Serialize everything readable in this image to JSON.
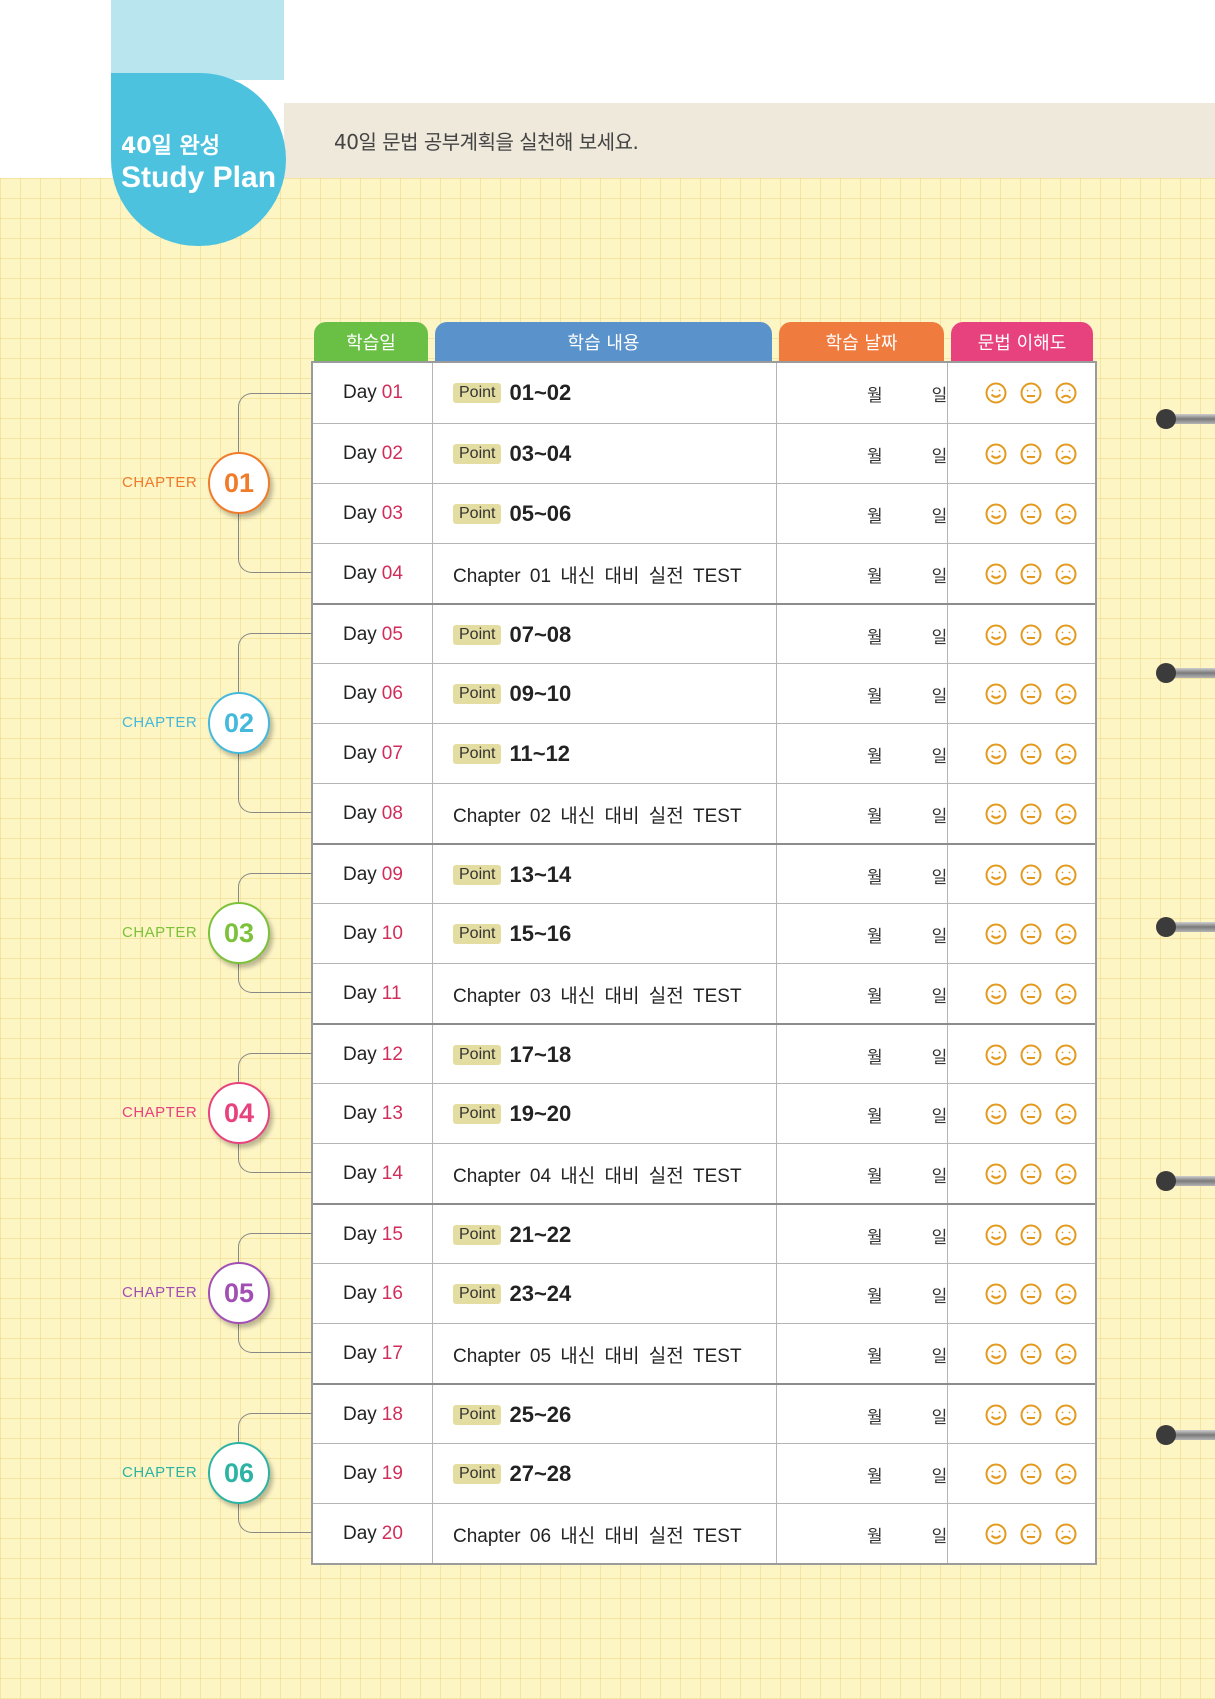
{
  "header": {
    "badge_line1": "40일 완성",
    "badge_line2": "Study Plan",
    "banner_text": "40일 문법 공부계획을 실천해 보세요."
  },
  "columns": [
    {
      "label": "학습일",
      "color": "#6abf45"
    },
    {
      "label": "학습 내용",
      "color": "#5a92cc"
    },
    {
      "label": "학습 날짜",
      "color": "#f07b3f"
    },
    {
      "label": "문법 이해도",
      "color": "#e7427e"
    }
  ],
  "date_labels": {
    "month": "월",
    "day": "일"
  },
  "chapter_word": "CHAPTER",
  "chapters": [
    {
      "number": "01",
      "color": "#f07b2a"
    },
    {
      "number": "02",
      "color": "#45b9dc"
    },
    {
      "number": "03",
      "color": "#7cc13a"
    },
    {
      "number": "04",
      "color": "#e7427e"
    },
    {
      "number": "05",
      "color": "#a24fb4"
    },
    {
      "number": "06",
      "color": "#2db3a3"
    }
  ],
  "rows": [
    {
      "day_prefix": "Day",
      "day": "01",
      "type": "point",
      "badge": "Point",
      "range": "01~02"
    },
    {
      "day_prefix": "Day",
      "day": "02",
      "type": "point",
      "badge": "Point",
      "range": "03~04"
    },
    {
      "day_prefix": "Day",
      "day": "03",
      "type": "point",
      "badge": "Point",
      "range": "05~06"
    },
    {
      "day_prefix": "Day",
      "day": "04",
      "type": "test",
      "text": "Chapter 01  내신 대비 실전 TEST"
    },
    {
      "day_prefix": "Day",
      "day": "05",
      "type": "point",
      "badge": "Point",
      "range": "07~08"
    },
    {
      "day_prefix": "Day",
      "day": "06",
      "type": "point",
      "badge": "Point",
      "range": "09~10"
    },
    {
      "day_prefix": "Day",
      "day": "07",
      "type": "point",
      "badge": "Point",
      "range": "11~12"
    },
    {
      "day_prefix": "Day",
      "day": "08",
      "type": "test",
      "text": "Chapter 02  내신 대비 실전 TEST"
    },
    {
      "day_prefix": "Day",
      "day": "09",
      "type": "point",
      "badge": "Point",
      "range": "13~14"
    },
    {
      "day_prefix": "Day",
      "day": "10",
      "type": "point",
      "badge": "Point",
      "range": "15~16"
    },
    {
      "day_prefix": "Day",
      "day": "11",
      "type": "test",
      "text": "Chapter 03  내신 대비 실전 TEST"
    },
    {
      "day_prefix": "Day",
      "day": "12",
      "type": "point",
      "badge": "Point",
      "range": "17~18"
    },
    {
      "day_prefix": "Day",
      "day": "13",
      "type": "point",
      "badge": "Point",
      "range": "19~20"
    },
    {
      "day_prefix": "Day",
      "day": "14",
      "type": "test",
      "text": "Chapter 04  내신 대비 실전 TEST"
    },
    {
      "day_prefix": "Day",
      "day": "15",
      "type": "point",
      "badge": "Point",
      "range": "21~22"
    },
    {
      "day_prefix": "Day",
      "day": "16",
      "type": "point",
      "badge": "Point",
      "range": "23~24"
    },
    {
      "day_prefix": "Day",
      "day": "17",
      "type": "test",
      "text": "Chapter 05  내신 대비 실전 TEST"
    },
    {
      "day_prefix": "Day",
      "day": "18",
      "type": "point",
      "badge": "Point",
      "range": "25~26"
    },
    {
      "day_prefix": "Day",
      "day": "19",
      "type": "point",
      "badge": "Point",
      "range": "27~28"
    },
    {
      "day_prefix": "Day",
      "day": "20",
      "type": "test",
      "text": "Chapter 06  내신 대비 실전 TEST"
    }
  ],
  "face_icons": [
    "happy-face-icon",
    "neutral-face-icon",
    "sad-face-icon"
  ],
  "face_color": "#e39a1f"
}
